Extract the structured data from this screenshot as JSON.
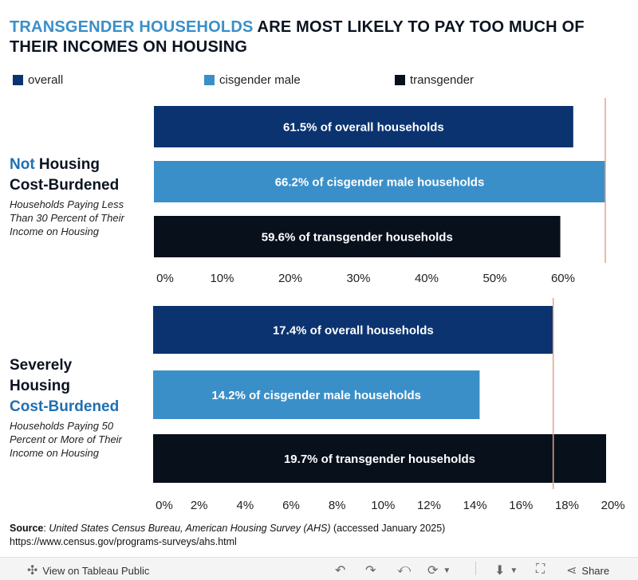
{
  "title": {
    "highlight": "TRANSGENDER HOUSEHOLDS",
    "rest": " ARE MOST LIKELY TO PAY TOO MUCH OF THEIR INCOMES ON HOUSING"
  },
  "legend": [
    {
      "label": "overall",
      "color": "#0a3370"
    },
    {
      "label": "cisgender male",
      "color": "#3a8fc9"
    },
    {
      "label": "transgender",
      "color": "#08101c"
    }
  ],
  "panel1": {
    "label_highlight": "Not",
    "label_rest_1": " Housing",
    "label_line2": "Cost-Burdened",
    "sub": "Households Paying Less Than 30 Percent of Their Income on Housing"
  },
  "panel2": {
    "label_line1": "Severely",
    "label_line2": "Housing",
    "label_highlight": "Cost-Burdened",
    "sub": "Households Paying 50 Percent or More of Their Income on Housing"
  },
  "chart_data": [
    {
      "type": "bar",
      "orientation": "horizontal",
      "title": "Not Housing Cost-Burdened",
      "categories": [
        "overall",
        "cisgender male",
        "transgender"
      ],
      "values": [
        61.5,
        66.2,
        59.6
      ],
      "bar_labels": [
        "61.5% of overall households",
        "66.2% of cisgender male households",
        "59.6% of transgender households"
      ],
      "xlim": [
        0,
        66.2
      ],
      "xticks": [
        0,
        10,
        20,
        30,
        40,
        50,
        60
      ],
      "xtick_labels": [
        "0%",
        "10%",
        "20%",
        "30%",
        "40%",
        "50%",
        "60%"
      ],
      "reference_line": 66.2
    },
    {
      "type": "bar",
      "orientation": "horizontal",
      "title": "Severely Housing Cost-Burdened",
      "categories": [
        "overall",
        "cisgender male",
        "transgender"
      ],
      "values": [
        17.4,
        14.2,
        19.7
      ],
      "bar_labels": [
        "17.4% of overall households",
        "14.2% of cisgender male households",
        "19.7% of transgender households"
      ],
      "xlim": [
        0,
        19.7
      ],
      "xticks": [
        0,
        2,
        4,
        6,
        8,
        10,
        12,
        14,
        16,
        18,
        20
      ],
      "xtick_labels": [
        "0%",
        "2%",
        "4%",
        "6%",
        "8%",
        "10%",
        "12%",
        "14%",
        "16%",
        "18%",
        "20%"
      ],
      "reference_line": 17.4
    }
  ],
  "source": {
    "label": "Source",
    "text_italic": "United States Census Bureau, American Housing Survey (AHS)",
    "text_rest": " (accessed January 2025)",
    "url": "https://www.census.gov/programs-surveys/ahs.html"
  },
  "footer": {
    "view_label": "View on Tableau Public",
    "share_label": "Share"
  }
}
